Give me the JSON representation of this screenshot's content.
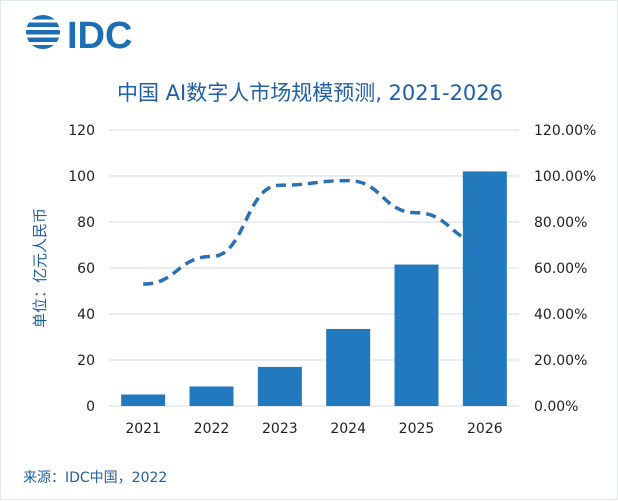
{
  "brand": {
    "logo_text": "IDC",
    "logo_color": "#1c6fb5"
  },
  "title": "中国 AI数字人市场规模预测, 2021-2026",
  "source": "来源：IDC中国，2022",
  "colors": {
    "bar": "#2379bd",
    "line": "#2a70b5",
    "title": "#1f5fa8",
    "text": "#222222",
    "grid": "#d3d8e0"
  },
  "chart_data": {
    "type": "bar",
    "title": "中国 AI数字人市场规模预测, 2021-2026",
    "categories": [
      "2021",
      "2022",
      "2023",
      "2024",
      "2025",
      "2026"
    ],
    "ylabel": "单位：亿元人民币",
    "ylim": [
      0,
      120
    ],
    "y_ticks": [
      "0",
      "20",
      "40",
      "60",
      "80",
      "100",
      "120"
    ],
    "y2lim": [
      0,
      1.2
    ],
    "y2_ticks": [
      "0.00%",
      "20.00%",
      "40.00%",
      "60.00%",
      "80.00%",
      "100.00%",
      "120.00%"
    ],
    "series": [
      {
        "type": "bar",
        "axis": "left",
        "values": [
          5,
          8.5,
          17,
          33.5,
          61.5,
          102
        ]
      },
      {
        "type": "line",
        "style": "dashed",
        "axis": "right",
        "values": [
          0.53,
          0.65,
          0.96,
          0.98,
          0.84,
          0.71
        ]
      }
    ],
    "grid": true,
    "legend": "none"
  }
}
